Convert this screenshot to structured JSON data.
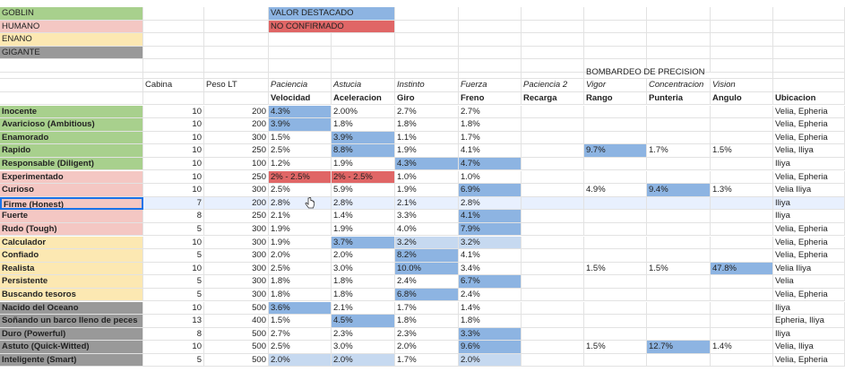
{
  "colors": {
    "goblin": "#a8d08d",
    "humano": "#f4c7c3",
    "enano": "#fce8b2",
    "gigante": "#999999",
    "highlight_strong": "#8db4e2",
    "highlight_light": "#c6d9f0",
    "not_confirmed": "#e06666",
    "selected_row": "#e8f0fe",
    "selected_border": "#1a73e8"
  },
  "legend": {
    "goblin": "GOBLIN",
    "humano": "HUMANO",
    "enano": "ENANO",
    "gigante": "GIGANTE",
    "valor_destacado": "VALOR DESTACADO",
    "no_confirmado": "NO CONFIRMADO"
  },
  "group_header": "BOMBARDEO DE PRECISION",
  "headers_row1": [
    "",
    "Cabina",
    "Peso LT",
    "Paciencia",
    "Astucia",
    "Instinto",
    "Fuerza",
    "Paciencia 2",
    "Vigor",
    "Concentracion",
    "Vision",
    ""
  ],
  "headers_row2": [
    "",
    "",
    "",
    "Velocidad",
    "Aceleracion",
    "Giro",
    "Freno",
    "Recarga",
    "Rango",
    "Punteria",
    "Angulo",
    "Ubicacion"
  ],
  "rows": [
    {
      "name": "Inocente",
      "race": "goblin",
      "cells": [
        "10",
        "200",
        "4.3%",
        "2.00%",
        "2.7%",
        "2.7%",
        "",
        "",
        "",
        "",
        "Velia, Epheria"
      ],
      "hl": {
        "2": "strong"
      }
    },
    {
      "name": "Avaricioso (Ambitious)",
      "race": "goblin",
      "cells": [
        "10",
        "200",
        "3.9%",
        "1.8%",
        "1.8%",
        "1.8%",
        "",
        "",
        "",
        "",
        "Velia, Epheria"
      ],
      "hl": {
        "2": "strong"
      }
    },
    {
      "name": "Enamorado",
      "race": "goblin",
      "cells": [
        "10",
        "300",
        "1.5%",
        "3.9%",
        "1.1%",
        "1.7%",
        "",
        "",
        "",
        "",
        "Velia, Epheria"
      ],
      "hl": {
        "3": "strong"
      }
    },
    {
      "name": "Rapido",
      "race": "goblin",
      "cells": [
        "10",
        "250",
        "2.5%",
        "8.8%",
        "1.9%",
        "4.1%",
        "",
        "9.7%",
        "1.7%",
        "1.5%",
        "Velia, Iliya"
      ],
      "hl": {
        "3": "strong",
        "7": "strong"
      }
    },
    {
      "name": "Responsable (Diligent)",
      "race": "goblin",
      "cells": [
        "10",
        "100",
        "1.2%",
        "1.9%",
        "4.3%",
        "4.7%",
        "",
        "",
        "",
        "",
        "Iliya"
      ],
      "hl": {
        "4": "strong",
        "5": "strong"
      }
    },
    {
      "name": "Experimentado",
      "race": "humano",
      "cells": [
        "10",
        "250",
        "2% - 2.5%",
        "2% - 2.5%",
        "1.0%",
        "1.0%",
        "",
        "",
        "",
        "",
        "Velia, Epheria"
      ],
      "hl": {
        "2": "red",
        "3": "red"
      }
    },
    {
      "name": "Curioso",
      "race": "humano",
      "cells": [
        "10",
        "300",
        "2.5%",
        "5.9%",
        "1.9%",
        "6.9%",
        "",
        "4.9%",
        "9.4%",
        "1.3%",
        "Velia Iliya"
      ],
      "hl": {
        "5": "strong",
        "8": "strong"
      }
    },
    {
      "name": "Firme (Honest)",
      "race": "humano",
      "cells": [
        "7",
        "200",
        "2.8%",
        "2.8%",
        "2.1%",
        "2.8%",
        "",
        "",
        "",
        "",
        "Iliya"
      ],
      "hl": {},
      "selected": true
    },
    {
      "name": "Fuerte",
      "race": "humano",
      "cells": [
        "8",
        "250",
        "2.1%",
        "1.4%",
        "3.3%",
        "4.1%",
        "",
        "",
        "",
        "",
        "Iliya"
      ],
      "hl": {
        "5": "strong"
      }
    },
    {
      "name": "Rudo (Tough)",
      "race": "humano",
      "cells": [
        "5",
        "300",
        "1.9%",
        "1.9%",
        "4.0%",
        "7.9%",
        "",
        "",
        "",
        "",
        "Velia, Epheria"
      ],
      "hl": {
        "5": "strong"
      }
    },
    {
      "name": "Calculador",
      "race": "enano",
      "cells": [
        "10",
        "300",
        "1.9%",
        "3.7%",
        "3.2%",
        "3.2%",
        "",
        "",
        "",
        "",
        "Velia, Epheria"
      ],
      "hl": {
        "3": "strong",
        "4": "light",
        "5": "light"
      }
    },
    {
      "name": "Confiado",
      "race": "enano",
      "cells": [
        "5",
        "300",
        "2.0%",
        "2.0%",
        "8.2%",
        "4.1%",
        "",
        "",
        "",
        "",
        "Velia, Epheria"
      ],
      "hl": {
        "4": "strong"
      }
    },
    {
      "name": "Realista",
      "race": "enano",
      "cells": [
        "10",
        "300",
        "2.5%",
        "3.0%",
        "10.0%",
        "3.4%",
        "",
        "1.5%",
        "1.5%",
        "47.8%",
        "Velia Iliya"
      ],
      "hl": {
        "4": "strong",
        "9": "strong"
      }
    },
    {
      "name": "Persistente",
      "race": "enano",
      "cells": [
        "5",
        "300",
        "1.8%",
        "1.8%",
        "2.4%",
        "6.7%",
        "",
        "",
        "",
        "",
        "Velia"
      ],
      "hl": {
        "5": "strong"
      }
    },
    {
      "name": "Buscando tesoros",
      "race": "enano",
      "cells": [
        "5",
        "300",
        "1.8%",
        "1.8%",
        "6.8%",
        "2.4%",
        "",
        "",
        "",
        "",
        "Velia, Epheria"
      ],
      "hl": {
        "4": "strong"
      }
    },
    {
      "name": "Nacido del Oceano",
      "race": "gigante",
      "cells": [
        "10",
        "500",
        "3.6%",
        "2.1%",
        "1.7%",
        "1.4%",
        "",
        "",
        "",
        "",
        "Iliya"
      ],
      "hl": {
        "2": "strong"
      }
    },
    {
      "name": "Soñando un barco lleno de peces",
      "race": "gigante",
      "cells": [
        "13",
        "400",
        "1.5%",
        "4.5%",
        "1.8%",
        "1.8%",
        "",
        "",
        "",
        "",
        "Epheria, Iliya"
      ],
      "hl": {
        "3": "strong"
      }
    },
    {
      "name": "Duro (Powerful)",
      "race": "gigante",
      "cells": [
        "8",
        "500",
        "2.7%",
        "2.3%",
        "2.3%",
        "3.3%",
        "",
        "",
        "",
        "",
        "Iliya"
      ],
      "hl": {
        "5": "strong"
      }
    },
    {
      "name": "Astuto (Quick-Witted)",
      "race": "gigante",
      "cells": [
        "10",
        "500",
        "2.5%",
        "3.0%",
        "2.0%",
        "9.6%",
        "",
        "1.5%",
        "12.7%",
        "1.4%",
        "Velia, Iliya"
      ],
      "hl": {
        "5": "strong",
        "8": "strong"
      }
    },
    {
      "name": "Inteligente (Smart)",
      "race": "gigante",
      "cells": [
        "5",
        "500",
        "2.0%",
        "2.0%",
        "1.7%",
        "2.0%",
        "",
        "",
        "",
        "",
        "Velia, Epheria"
      ],
      "hl": {
        "2": "light",
        "3": "light",
        "5": "light"
      }
    }
  ]
}
